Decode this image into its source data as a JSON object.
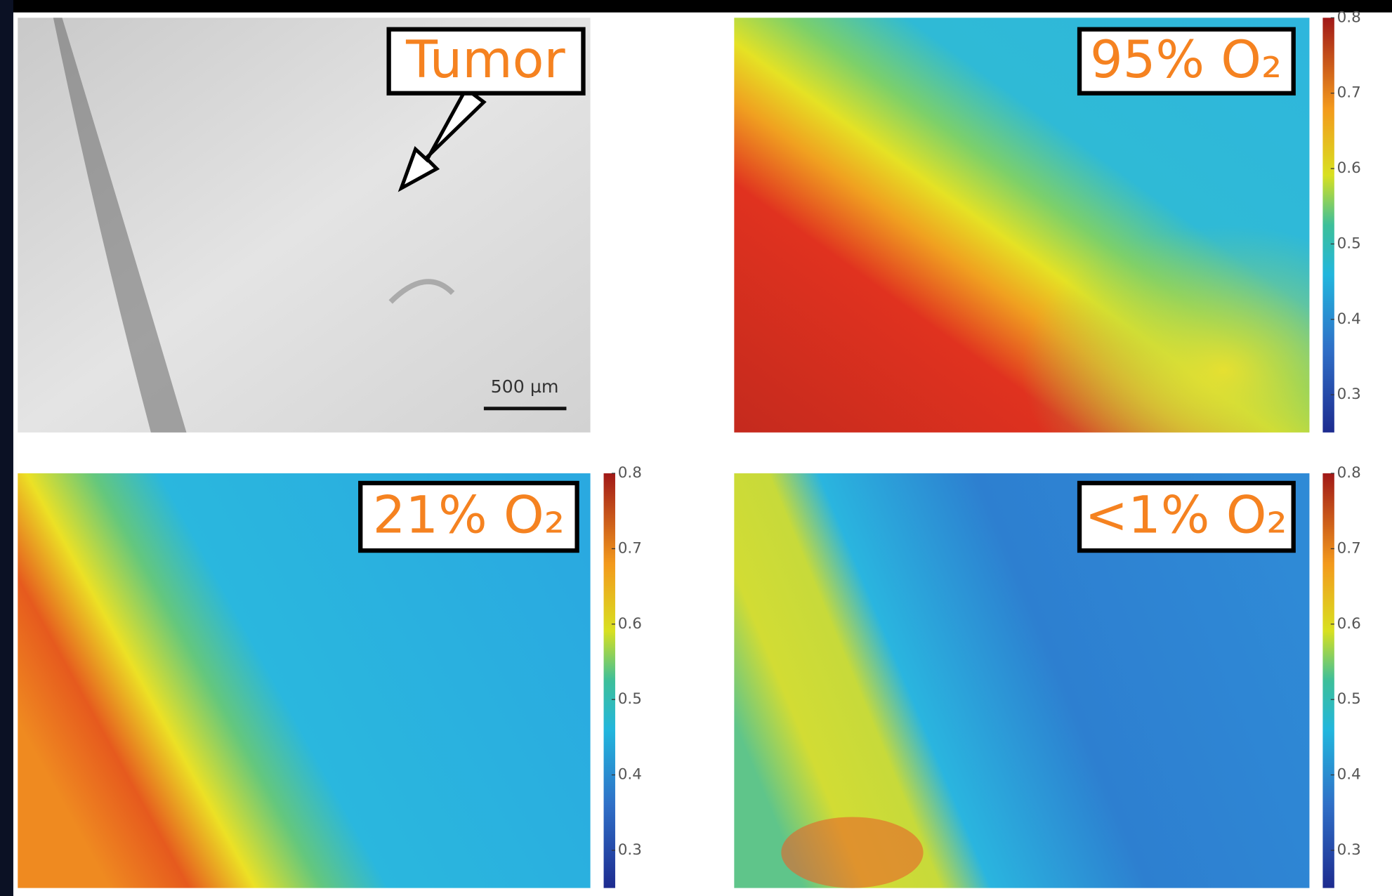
{
  "panels": [
    {
      "label": "Tumor",
      "scale_bar": "500 µm"
    },
    {
      "label": "95% O₂"
    },
    {
      "label": "21% O₂"
    },
    {
      "label": "<1% O₂"
    }
  ],
  "colorbar": {
    "lim": [
      0.25,
      0.8
    ],
    "ticks": [
      0.3,
      0.4,
      0.5,
      0.6,
      0.7,
      0.8
    ]
  }
}
